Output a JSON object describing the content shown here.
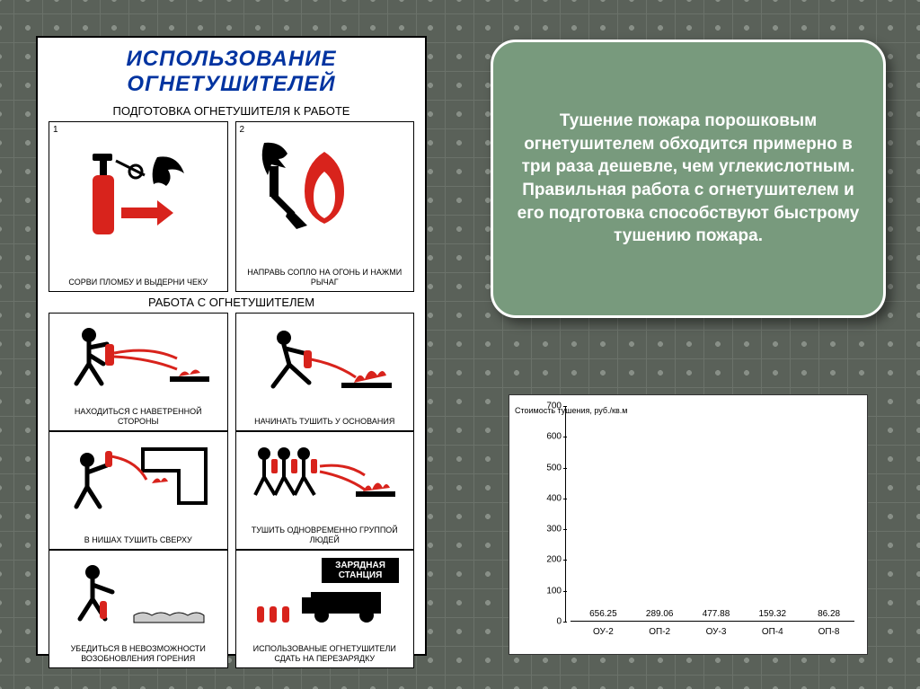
{
  "poster": {
    "title": "ИСПОЛЬЗОВАНИЕ ОГНЕТУШИТЕЛЕЙ",
    "section_prep": "ПОДГОТОВКА ОГНЕТУШИТЕЛЯ К РАБОТЕ",
    "section_work": "РАБОТА С ОГНЕТУШИТЕЛЕМ",
    "prep": [
      {
        "num": "1",
        "caption": "СОРВИ ПЛОМБУ И ВЫДЕРНИ ЧЕКУ"
      },
      {
        "num": "2",
        "caption": "НАПРАВЬ СОПЛО НА ОГОНЬ И НАЖМИ РЫЧАГ"
      }
    ],
    "work": [
      {
        "caption": "НАХОДИТЬСЯ С НАВЕТРЕННОЙ СТОРОНЫ"
      },
      {
        "caption": "НАЧИНАТЬ ТУШИТЬ У ОСНОВАНИЯ"
      },
      {
        "caption": "В НИШАХ ТУШИТЬ СВЕРХУ"
      },
      {
        "caption": "ТУШИТЬ ОДНОВРЕМЕННО ГРУППОЙ ЛЮДЕЙ"
      },
      {
        "caption": "УБЕДИТЬСЯ В НЕВОЗМОЖНОСТИ ВОЗОБНОВЛЕНИЯ ГОРЕНИЯ"
      },
      {
        "caption": "ИСПОЛЬЗОВАНЫЕ ОГНЕТУШИТЕЛИ СДАТЬ НА ПЕРЕЗАРЯДКУ",
        "sign": "ЗАРЯДНАЯ СТАНЦИЯ"
      }
    ],
    "icon_colors": {
      "red": "#d8231c",
      "black": "#000000",
      "white": "#ffffff"
    }
  },
  "callout": {
    "text": "Тушение пожара порошковым огнетушителем обходится примерно в три раза дешевле, чем углекислотным. Правильная работа с огнетушителем и его подготовка способствуют быстрому тушению пожара.",
    "bg": "#789a7d",
    "border": "#ffffff",
    "text_color": "#ffffff",
    "fontsize": 19,
    "radius": 28
  },
  "chart": {
    "type": "bar",
    "y_title": "Стоимость тушения, руб./кв.м",
    "categories": [
      "ОУ-2",
      "ОП-2",
      "ОУ-3",
      "ОП-4",
      "ОП-8"
    ],
    "values": [
      656.25,
      289.06,
      477.88,
      159.32,
      86.28
    ],
    "value_labels": [
      "656.25",
      "289.06",
      "477.88",
      "159.32",
      "86.28"
    ],
    "bar_color": "#6b1f0a",
    "bar_gradient": [
      "#7a2a15",
      "#5c1e0c"
    ],
    "ylim": [
      0,
      700
    ],
    "ytick_step": 100,
    "yticks": [
      0,
      100,
      200,
      300,
      400,
      500,
      600,
      700
    ],
    "background": "#ffffff",
    "axis_color": "#000000",
    "label_fontsize": 10,
    "tick_fontsize": 10,
    "bar_gap": 14
  },
  "page": {
    "bg": "#5a6159",
    "grid": "#6b726a",
    "rivet": "#888f87"
  }
}
